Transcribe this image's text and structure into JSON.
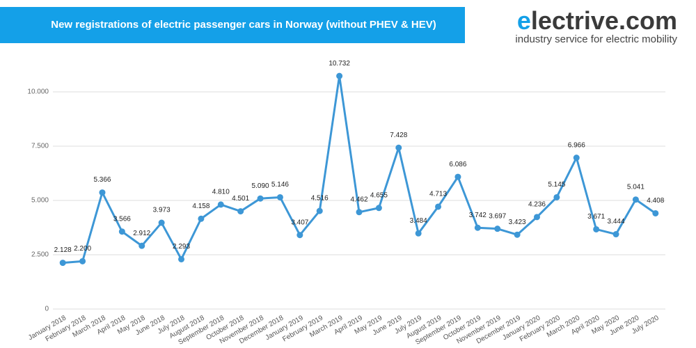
{
  "logo": {
    "initial": "e",
    "rest": "lectrive.com",
    "tagline": "industry service for electric mobility"
  },
  "chart_data": {
    "type": "line",
    "title": "New registrations of electric passenger cars in Norway (without PHEV & HEV)",
    "categories": [
      "January 2018",
      "February 2018",
      "March 2018",
      "April 2018",
      "May 2018",
      "June 2018",
      "July 2018",
      "August 2018",
      "September 2018",
      "October 2018",
      "November 2018",
      "December 2018",
      "January 2019",
      "February 2019",
      "March 2019",
      "April 2019",
      "May 2019",
      "June 2019",
      "July 2019",
      "August 2019",
      "September 2019",
      "October 2019",
      "November 2019",
      "December 2019",
      "January 2020",
      "February 2020",
      "March 2020",
      "April 2020",
      "May 2020",
      "June 2020",
      "July 2020"
    ],
    "values": [
      2128,
      2200,
      5366,
      3566,
      2912,
      3973,
      2293,
      4158,
      4810,
      4501,
      5090,
      5146,
      3407,
      4516,
      10732,
      4462,
      4655,
      7428,
      3484,
      4713,
      6086,
      3742,
      3697,
      3423,
      4236,
      5145,
      6966,
      3671,
      3444,
      5041,
      4408
    ],
    "value_labels": [
      "2.128",
      "2.200",
      "5.366",
      "3.566",
      "2.912",
      "3.973",
      "2.293",
      "4.158",
      "4.810",
      "4.501",
      "5.090",
      "5.146",
      "3.407",
      "4.516",
      "10.732",
      "4.462",
      "4.655",
      "7.428",
      "3.484",
      "4.713",
      "6.086",
      "3.742",
      "3.697",
      "3.423",
      "4.236",
      "5.145",
      "6.966",
      "3.671",
      "3.444",
      "5.041",
      "4.408"
    ],
    "color": "#3d97d6",
    "ylim": [
      0,
      11250
    ],
    "yticks": [
      0,
      {
        "value": 2500,
        "label": "2.500"
      },
      {
        "value": 5000,
        "label": "5.000"
      },
      {
        "value": 7500,
        "label": "7.500"
      },
      {
        "value": 10000,
        "label": "10.000"
      }
    ],
    "grid": true
  }
}
